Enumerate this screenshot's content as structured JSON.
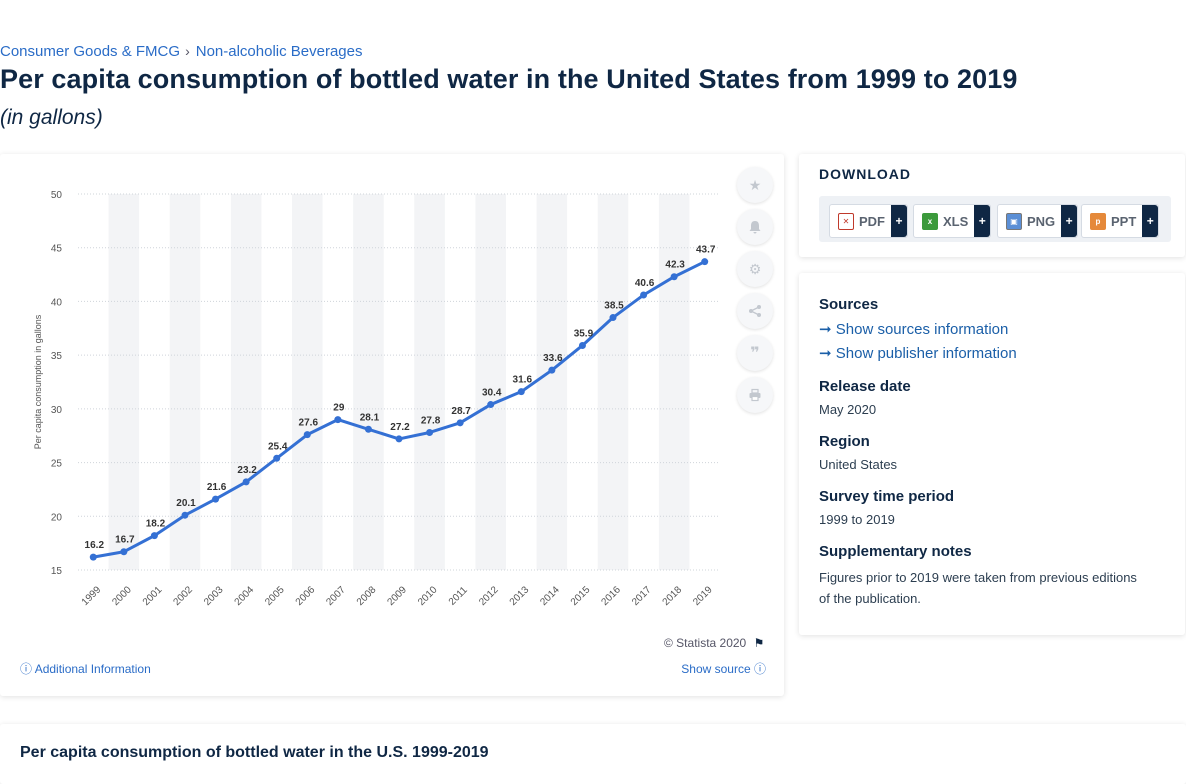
{
  "breadcrumb": {
    "item1": "Consumer Goods & FMCG",
    "item2": "Non-alcoholic Beverages"
  },
  "page": {
    "title": "Per capita consumption of bottled water in the United States from 1999 to 2019",
    "unit": "(in gallons)"
  },
  "chart_data": {
    "type": "line",
    "title": "",
    "xlabel": "",
    "ylabel": "Per capita consumption in gallons",
    "categories": [
      "1999",
      "2000",
      "2001",
      "2002",
      "2003",
      "2004",
      "2005",
      "2006",
      "2007",
      "2008",
      "2009",
      "2010",
      "2011",
      "2012",
      "2013",
      "2014",
      "2015",
      "2016",
      "2017",
      "2018",
      "2019"
    ],
    "series": [
      {
        "values": [
          16.2,
          16.7,
          18.2,
          20.1,
          21.6,
          23.2,
          25.4,
          27.6,
          29,
          28.1,
          27.2,
          27.8,
          28.7,
          30.4,
          31.6,
          33.6,
          35.9,
          38.5,
          40.6,
          42.3,
          43.7
        ]
      }
    ],
    "yticks": [
      15,
      20,
      25,
      30,
      35,
      40,
      45,
      50
    ],
    "ylim": [
      15,
      50
    ],
    "grid": true,
    "line_color": "#3470d4"
  },
  "chart_footer": {
    "copyright": "© Statista 2020",
    "additional_info": "Additional Information",
    "show_source": "Show source"
  },
  "download": {
    "title": "DOWNLOAD",
    "buttons": [
      "PDF",
      "XLS",
      "PNG",
      "PPT"
    ],
    "plus": "+"
  },
  "info": {
    "sources_label": "Sources",
    "show_sources": "Show sources information",
    "show_publisher": "Show publisher information",
    "release_label": "Release date",
    "release_value": "May 2020",
    "region_label": "Region",
    "region_value": "United States",
    "survey_label": "Survey time period",
    "survey_value": "1999 to 2019",
    "supp_label": "Supplementary notes",
    "supp_value": "Figures prior to 2019 were taken from previous editions of the publication."
  },
  "related": {
    "title": "Per capita consumption of bottled water in the U.S. 1999-2019"
  },
  "icons": [
    "star-icon",
    "bell-icon",
    "gear-icon",
    "share-icon",
    "quote-icon",
    "print-icon",
    "info-icon",
    "flag-icon",
    "arrow-right-icon"
  ]
}
